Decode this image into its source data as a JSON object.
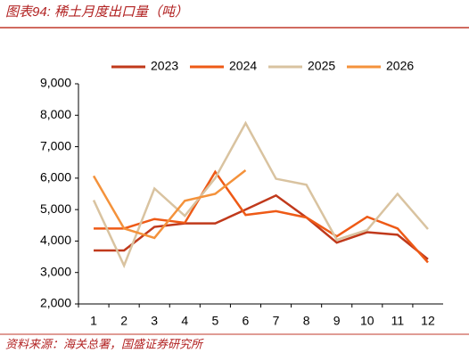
{
  "chart_data": {
    "type": "line",
    "title": "图表94: 稀土月度出口量（吨）",
    "source": "资料来源：海关总署，国盛证券研究所",
    "categories": [
      "1",
      "2",
      "3",
      "4",
      "5",
      "6",
      "7",
      "8",
      "9",
      "10",
      "11",
      "12"
    ],
    "series": [
      {
        "name": "2023",
        "color": "#c0391b",
        "values": [
          3700,
          3700,
          4450,
          4560,
          4560,
          5000,
          5450,
          4750,
          3950,
          4280,
          4200,
          3420
        ]
      },
      {
        "name": "2024",
        "color": "#ee5a16",
        "values": [
          4400,
          4400,
          4700,
          4580,
          6200,
          4830,
          4950,
          4750,
          4150,
          4770,
          4400,
          3320
        ]
      },
      {
        "name": "2025",
        "color": "#d9c3a0",
        "values": [
          5300,
          3220,
          5670,
          4800,
          6000,
          7750,
          5980,
          5790,
          4040,
          4350,
          5500,
          4380
        ]
      },
      {
        "name": "2026",
        "color": "#f4923b",
        "values": [
          6070,
          4400,
          4100,
          5280,
          5500,
          6250,
          null,
          null,
          null,
          null,
          null,
          null
        ]
      }
    ],
    "ylim": [
      2000,
      9000
    ],
    "yticks": [
      {
        "value": 2000,
        "label": "2,000"
      },
      {
        "value": 3000,
        "label": "3,000"
      },
      {
        "value": 4000,
        "label": "4,000"
      },
      {
        "value": 5000,
        "label": "5,000"
      },
      {
        "value": 6000,
        "label": "6,000"
      },
      {
        "value": 7000,
        "label": "7,000"
      },
      {
        "value": 8000,
        "label": "8,000"
      },
      {
        "value": 9000,
        "label": "9,000"
      }
    ],
    "legend": "top"
  }
}
